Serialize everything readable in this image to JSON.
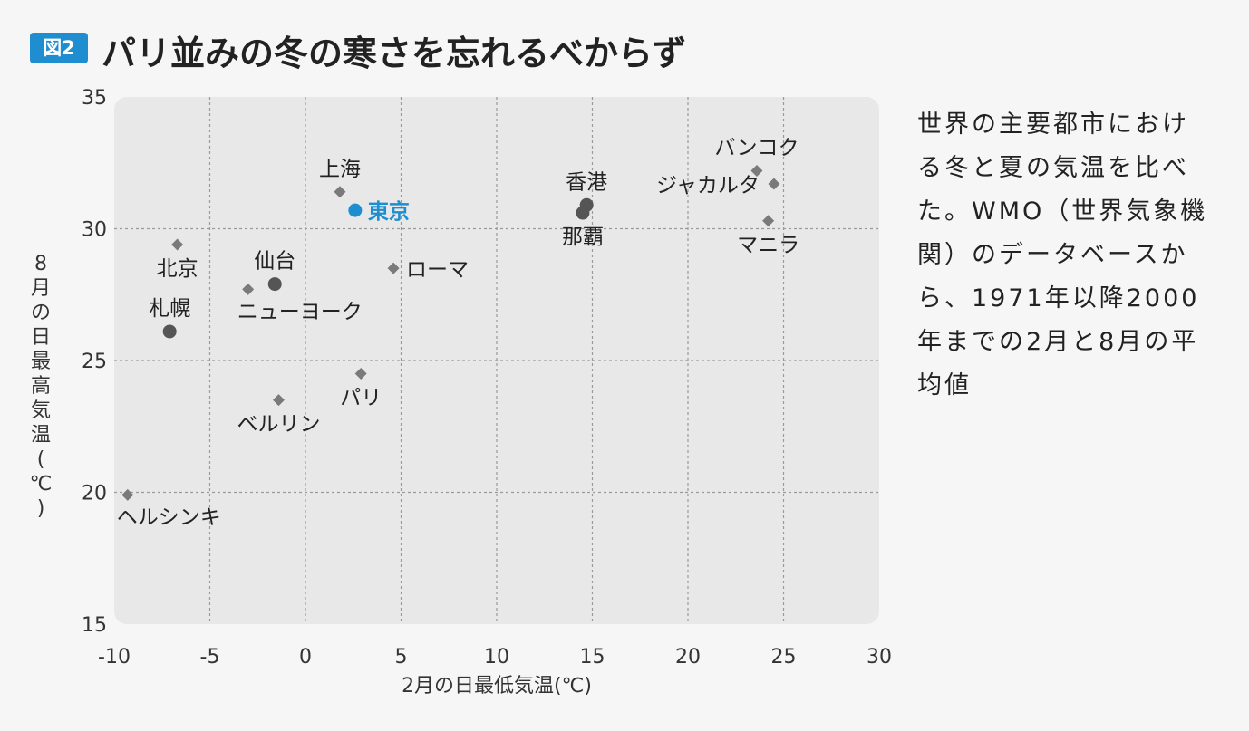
{
  "figure": {
    "badge": "図2",
    "title": "パリ並みの冬の寒さを忘れるべからず"
  },
  "caption": "世界の主要都市における冬と夏の気温を比べた。WMO（世界気象機関）のデータベースから、1971年以降2000年までの2月と8月の平均値",
  "chart_data": {
    "type": "scatter",
    "xlabel": "2月の日最低気温(℃)",
    "ylabel_chars": [
      "8",
      "月",
      "の",
      "日",
      "最",
      "高",
      "気",
      "温",
      "(",
      "℃",
      ")"
    ],
    "xlim": [
      -10,
      30
    ],
    "ylim": [
      15,
      35
    ],
    "xticks": [
      -10,
      -5,
      0,
      5,
      10,
      15,
      20,
      25,
      30
    ],
    "yticks": [
      15,
      20,
      25,
      30,
      35
    ],
    "grid": true,
    "highlight_color": "#1f8ed0",
    "point_color": "#7a7a7a",
    "circle_color": "#555555",
    "points": [
      {
        "name": "上海",
        "x": 1.8,
        "y": 31.4,
        "marker": "diamond",
        "label_pos": "above"
      },
      {
        "name": "東京",
        "x": 2.6,
        "y": 30.7,
        "marker": "circle",
        "highlight": true,
        "label_pos": "right"
      },
      {
        "name": "香港",
        "x": 14.7,
        "y": 30.9,
        "marker": "circle",
        "label_pos": "above"
      },
      {
        "name": "那覇",
        "x": 14.5,
        "y": 30.6,
        "marker": "circle",
        "label_pos": "below"
      },
      {
        "name": "バンコク",
        "x": 23.6,
        "y": 32.2,
        "marker": "diamond",
        "label_pos": "above"
      },
      {
        "name": "ジャカルタ",
        "x": 24.5,
        "y": 31.7,
        "marker": "diamond",
        "label_pos": "left"
      },
      {
        "name": "マニラ",
        "x": 24.2,
        "y": 30.3,
        "marker": "diamond",
        "label_pos": "below"
      },
      {
        "name": "北京",
        "x": -6.7,
        "y": 29.4,
        "marker": "diamond",
        "label_pos": "below"
      },
      {
        "name": "仙台",
        "x": -1.6,
        "y": 27.9,
        "marker": "circle",
        "label_pos": "above"
      },
      {
        "name": "ニューヨーク",
        "x": -3.0,
        "y": 27.7,
        "marker": "diamond",
        "label_pos": "below-right"
      },
      {
        "name": "ローマ",
        "x": 4.6,
        "y": 28.5,
        "marker": "diamond",
        "label_pos": "right"
      },
      {
        "name": "札幌",
        "x": -7.1,
        "y": 26.1,
        "marker": "circle",
        "label_pos": "above"
      },
      {
        "name": "パリ",
        "x": 2.9,
        "y": 24.5,
        "marker": "diamond",
        "label_pos": "below"
      },
      {
        "name": "ベルリン",
        "x": -1.4,
        "y": 23.5,
        "marker": "diamond",
        "label_pos": "below"
      },
      {
        "name": "ヘルシンキ",
        "x": -9.3,
        "y": 19.9,
        "marker": "diamond",
        "label_pos": "below-right"
      }
    ]
  }
}
